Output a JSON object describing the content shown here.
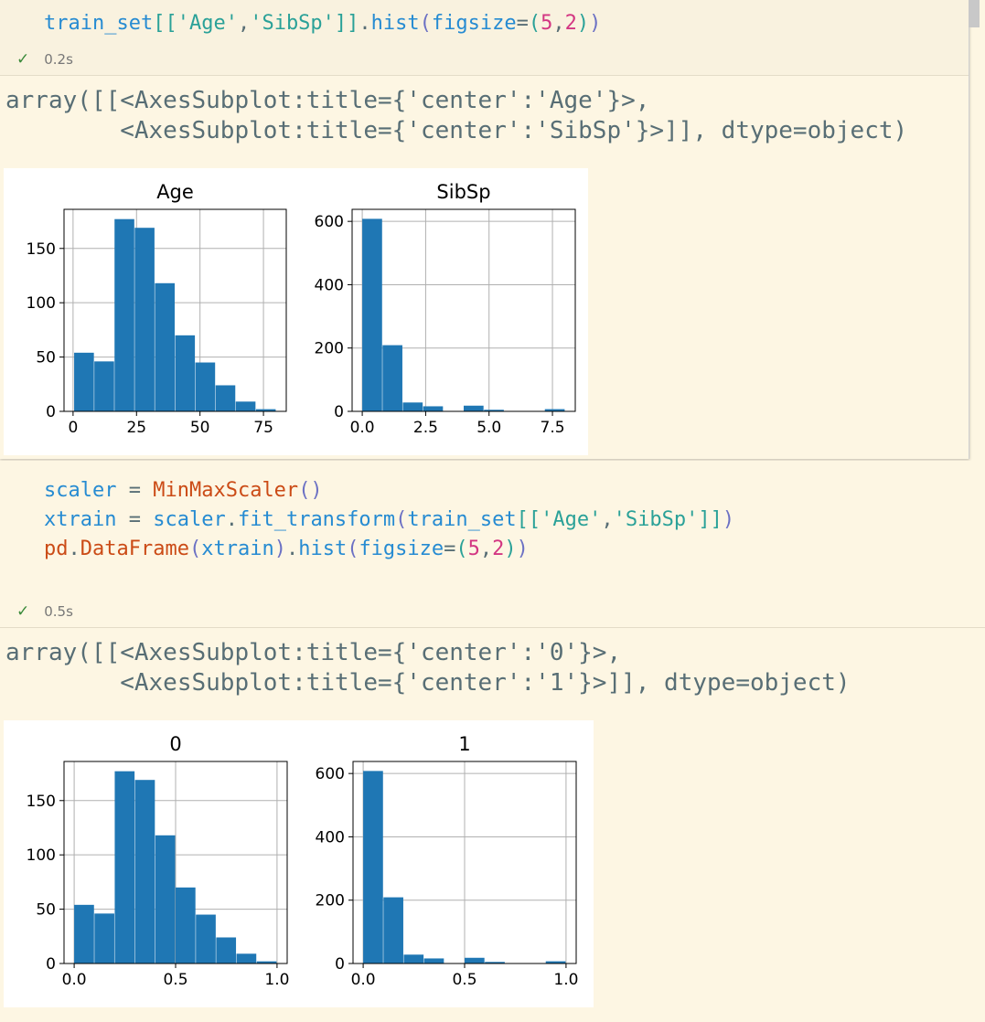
{
  "cell1": {
    "code_tokens": [
      {
        "t": "train_set",
        "c": "kw-blue"
      },
      {
        "t": "[[",
        "c": "kw-teal"
      },
      {
        "t": "'Age'",
        "c": "kw-teal"
      },
      {
        "t": ",",
        "c": "kw-plain"
      },
      {
        "t": "'SibSp'",
        "c": "kw-teal"
      },
      {
        "t": "]]",
        "c": "kw-teal"
      },
      {
        "t": ".",
        "c": "kw-plain"
      },
      {
        "t": "hist",
        "c": "kw-blue"
      },
      {
        "t": "(",
        "c": "kw-purple"
      },
      {
        "t": "figsize",
        "c": "kw-blue"
      },
      {
        "t": "=",
        "c": "kw-plain"
      },
      {
        "t": "(",
        "c": "kw-teal"
      },
      {
        "t": "5",
        "c": "kw-pink"
      },
      {
        "t": ",",
        "c": "kw-plain"
      },
      {
        "t": "2",
        "c": "kw-pink"
      },
      {
        "t": ")",
        "c": "kw-teal"
      },
      {
        "t": ")",
        "c": "kw-purple"
      }
    ],
    "status_time": "0.2s",
    "output_line1": "array([[<AxesSubplot:title={'center':'Age'}>,",
    "output_line2": "        <AxesSubplot:title={'center':'SibSp'}>]], dtype=object)"
  },
  "cell2": {
    "code_lines": [
      [
        {
          "t": "scaler",
          "c": "kw-blue"
        },
        {
          "t": " = ",
          "c": "kw-plain"
        },
        {
          "t": "MinMaxScaler",
          "c": "kw-orange"
        },
        {
          "t": "()",
          "c": "kw-purple"
        }
      ],
      [
        {
          "t": "xtrain",
          "c": "kw-blue"
        },
        {
          "t": " = ",
          "c": "kw-plain"
        },
        {
          "t": "scaler",
          "c": "kw-blue"
        },
        {
          "t": ".",
          "c": "kw-plain"
        },
        {
          "t": "fit_transform",
          "c": "kw-blue"
        },
        {
          "t": "(",
          "c": "kw-purple"
        },
        {
          "t": "train_set",
          "c": "kw-blue"
        },
        {
          "t": "[[",
          "c": "kw-teal"
        },
        {
          "t": "'Age'",
          "c": "kw-teal"
        },
        {
          "t": ",",
          "c": "kw-plain"
        },
        {
          "t": "'SibSp'",
          "c": "kw-teal"
        },
        {
          "t": "]]",
          "c": "kw-teal"
        },
        {
          "t": ")",
          "c": "kw-purple"
        }
      ],
      [
        {
          "t": "pd",
          "c": "kw-orange"
        },
        {
          "t": ".",
          "c": "kw-plain"
        },
        {
          "t": "DataFrame",
          "c": "kw-orange"
        },
        {
          "t": "(",
          "c": "kw-purple"
        },
        {
          "t": "xtrain",
          "c": "kw-blue"
        },
        {
          "t": ")",
          "c": "kw-purple"
        },
        {
          "t": ".",
          "c": "kw-plain"
        },
        {
          "t": "hist",
          "c": "kw-blue"
        },
        {
          "t": "(",
          "c": "kw-purple"
        },
        {
          "t": "figsize",
          "c": "kw-blue"
        },
        {
          "t": "=",
          "c": "kw-plain"
        },
        {
          "t": "(",
          "c": "kw-teal"
        },
        {
          "t": "5",
          "c": "kw-pink"
        },
        {
          "t": ",",
          "c": "kw-plain"
        },
        {
          "t": "2",
          "c": "kw-pink"
        },
        {
          "t": ")",
          "c": "kw-teal"
        },
        {
          "t": ")",
          "c": "kw-purple"
        }
      ]
    ],
    "status_time": "0.5s",
    "output_line1": "array([[<AxesSubplot:title={'center':'0'}>,",
    "output_line2": "        <AxesSubplot:title={'center':'1'}>]], dtype=object)"
  },
  "colors": {
    "bar": "#1f77b4",
    "grid": "#b0b0b0"
  },
  "chart_data": [
    {
      "type": "bar",
      "title": "Age",
      "bin_edges": [
        0.42,
        8.38,
        16.34,
        24.29,
        32.25,
        40.21,
        48.17,
        56.13,
        64.08,
        72.04,
        80.0
      ],
      "values": [
        54,
        46,
        177,
        169,
        118,
        70,
        45,
        24,
        9,
        2
      ],
      "xticks": [
        0,
        25,
        50,
        75
      ],
      "xtick_labels": [
        "0",
        "25",
        "50",
        "75"
      ],
      "xlim": [
        -3.56,
        83.98
      ],
      "yticks": [
        0,
        50,
        100,
        150
      ],
      "ytick_labels": [
        "0",
        "50",
        "100",
        "150"
      ],
      "ylim": [
        0,
        186
      ],
      "grid": true
    },
    {
      "type": "bar",
      "title": "SibSp",
      "bin_edges": [
        0,
        0.8,
        1.6,
        2.4,
        3.2,
        4.0,
        4.8,
        5.6,
        6.4,
        7.2,
        8.0
      ],
      "values": [
        608,
        209,
        28,
        16,
        0,
        18,
        5,
        0,
        0,
        7
      ],
      "xticks": [
        0,
        2.5,
        5.0,
        7.5
      ],
      "xtick_labels": [
        "0.0",
        "2.5",
        "5.0",
        "7.5"
      ],
      "xlim": [
        -0.4,
        8.4
      ],
      "yticks": [
        0,
        200,
        400,
        600
      ],
      "ytick_labels": [
        "0",
        "200",
        "400",
        "600"
      ],
      "ylim": [
        0,
        638
      ],
      "grid": true
    },
    {
      "type": "bar",
      "title": "0",
      "bin_edges": [
        0,
        0.1,
        0.2,
        0.3,
        0.4,
        0.5,
        0.6,
        0.7,
        0.8,
        0.9,
        1.0
      ],
      "values": [
        54,
        46,
        177,
        169,
        118,
        70,
        45,
        24,
        9,
        2
      ],
      "xticks": [
        0,
        0.5,
        1.0
      ],
      "xtick_labels": [
        "0.0",
        "0.5",
        "1.0"
      ],
      "xlim": [
        -0.05,
        1.05
      ],
      "yticks": [
        0,
        50,
        100,
        150
      ],
      "ytick_labels": [
        "0",
        "50",
        "100",
        "150"
      ],
      "ylim": [
        0,
        186
      ],
      "grid": true
    },
    {
      "type": "bar",
      "title": "1",
      "bin_edges": [
        0,
        0.1,
        0.2,
        0.3,
        0.4,
        0.5,
        0.6,
        0.7,
        0.8,
        0.9,
        1.0
      ],
      "values": [
        608,
        209,
        28,
        16,
        0,
        18,
        5,
        0,
        0,
        7
      ],
      "xticks": [
        0,
        0.5,
        1.0
      ],
      "xtick_labels": [
        "0.0",
        "0.5",
        "1.0"
      ],
      "xlim": [
        -0.05,
        1.05
      ],
      "yticks": [
        0,
        200,
        400,
        600
      ],
      "ytick_labels": [
        "0",
        "200",
        "400",
        "600"
      ],
      "ylim": [
        0,
        638
      ],
      "grid": true
    }
  ]
}
